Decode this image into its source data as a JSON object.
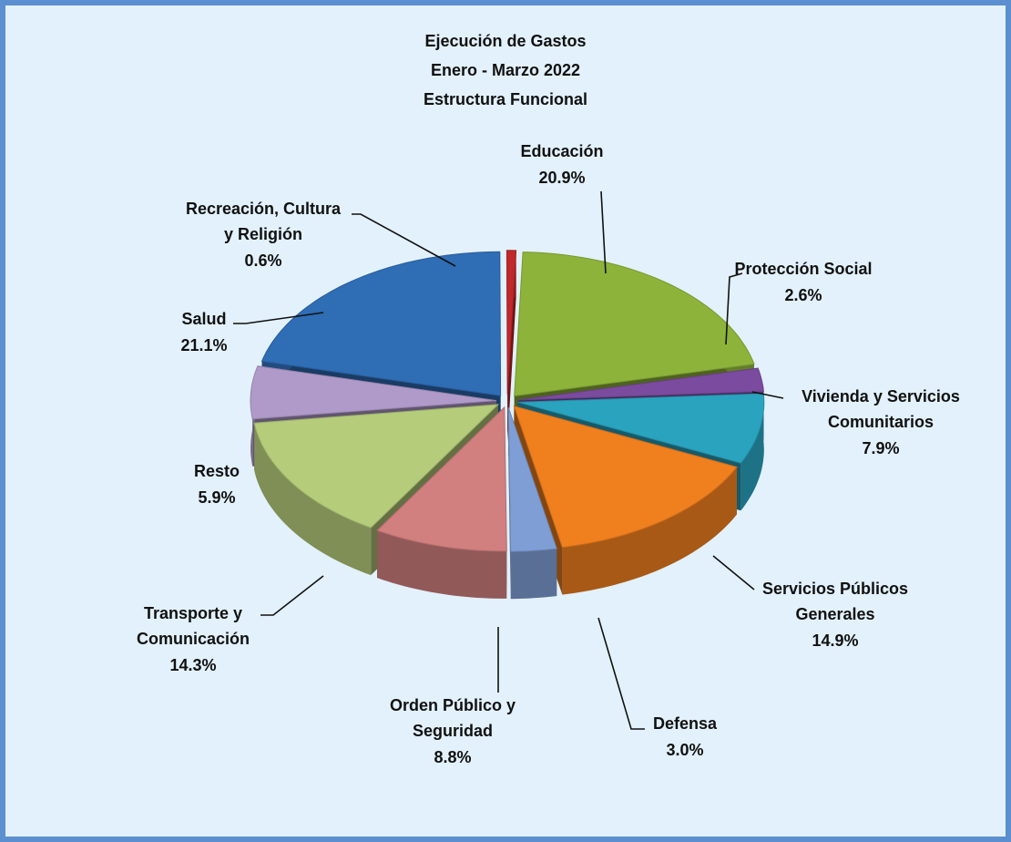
{
  "chart_data": {
    "type": "pie",
    "title": "Ejecución de Gastos",
    "subtitles": [
      "Enero - Marzo 2022",
      "Estructura Funcional"
    ],
    "categories": [
      "Educación",
      "Protección Social",
      "Vivienda y Servicios Comunitarios",
      "Servicios Públicos Generales",
      "Defensa",
      "Orden Público y Seguridad",
      "Transporte y Comunicación",
      "Resto",
      "Salud",
      "Recreación, Cultura y Religión"
    ],
    "values": [
      20.9,
      2.6,
      7.9,
      14.9,
      3.0,
      8.8,
      14.3,
      5.9,
      21.1,
      0.6
    ],
    "value_labels": [
      "20.9%",
      "2.6%",
      "7.9%",
      "14.9%",
      "3.0%",
      "8.8%",
      "14.3%",
      "5.9%",
      "21.1%",
      "0.6%"
    ],
    "colors": [
      "#8db33a",
      "#7a4b9e",
      "#2aa3bf",
      "#f07f1e",
      "#7f9ed6",
      "#d17f7f",
      "#b5cc7a",
      "#b09ac9",
      "#2f6db5",
      "#c0282b"
    ]
  }
}
